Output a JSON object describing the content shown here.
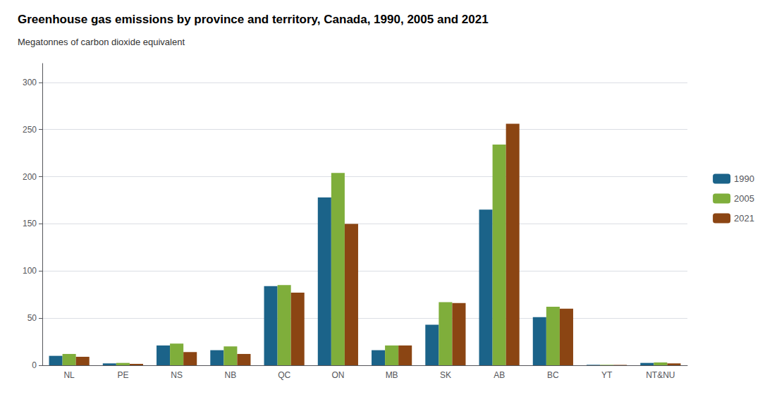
{
  "chart_data": {
    "type": "bar",
    "title": "Greenhouse gas emissions by province and territory, Canada, 1990, 2005 and 2021",
    "ylabel": "Megatonnes of carbon dioxide equivalent",
    "categories": [
      "NL",
      "PE",
      "NS",
      "NB",
      "QC",
      "ON",
      "MB",
      "SK",
      "AB",
      "BC",
      "YT",
      "NT&NU"
    ],
    "series": [
      {
        "name": "1990",
        "color": "#1b6389",
        "values": [
          10,
          2,
          21,
          16,
          84,
          178,
          16,
          43,
          165,
          51,
          0.5,
          2.5
        ]
      },
      {
        "name": "2005",
        "color": "#7fae3b",
        "values": [
          12,
          2.5,
          23,
          20,
          85,
          204,
          21,
          67,
          234,
          62,
          0.5,
          3
        ]
      },
      {
        "name": "2021",
        "color": "#8b4513",
        "values": [
          9,
          1.5,
          14,
          12,
          77,
          150,
          21,
          66,
          256,
          60,
          0.4,
          2
        ]
      }
    ],
    "ylim": [
      0,
      320
    ],
    "yticks": [
      0,
      50,
      100,
      150,
      200,
      250,
      300
    ],
    "grid": true,
    "legend": "right"
  }
}
